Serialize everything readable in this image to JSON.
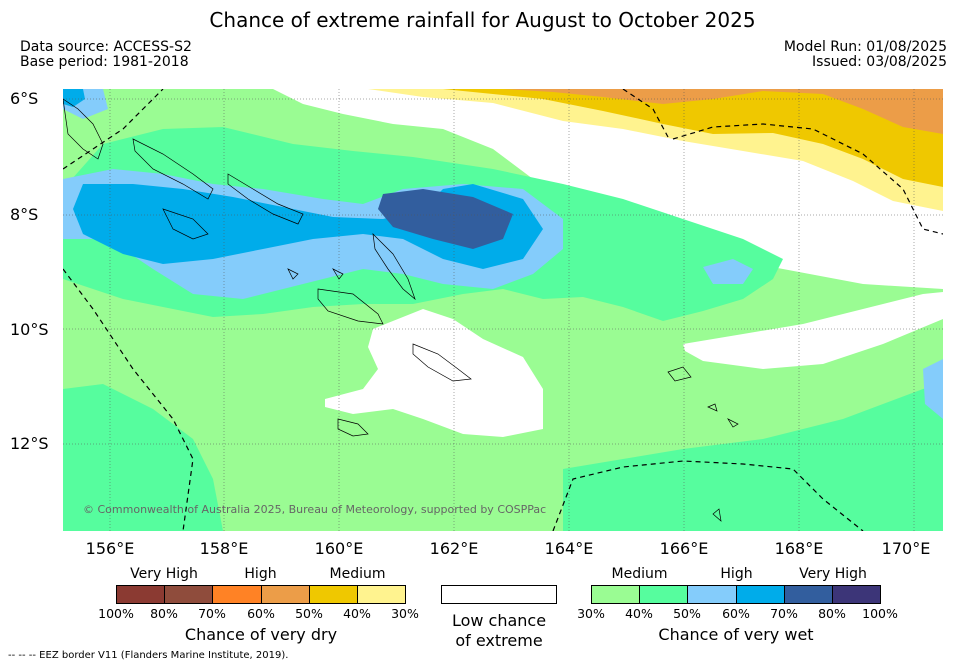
{
  "title": "Chance of extreme rainfall for August to October 2025",
  "data_source": "Data source: ACCESS-S2",
  "base_period": "Base period: 1981-2018",
  "model_run": "Model Run: 01/08/2025",
  "issued": "Issued: 03/08/2025",
  "map": {
    "lat_labels": [
      "6°S",
      "8°S",
      "10°S",
      "12°S"
    ],
    "lon_labels": [
      "156°E",
      "158°E",
      "160°E",
      "162°E",
      "164°E",
      "166°E",
      "168°E",
      "170°E"
    ],
    "copyright": "© Commonwealth of Australia 2025, Bureau of Meteorology, supported by COSPPac"
  },
  "legend": {
    "dry": {
      "headers": [
        "Very High",
        "High",
        "Medium"
      ],
      "ticks": [
        "100%",
        "80%",
        "70%",
        "60%",
        "50%",
        "40%",
        "30%"
      ],
      "caption": "Chance of very dry",
      "colors": [
        "#8b3a32",
        "#8f4c3c",
        "#ff8225",
        "#ec9d48",
        "#efc800",
        "#fff38f"
      ]
    },
    "neutral": {
      "caption_line1": "Low chance",
      "caption_line2": "of extreme",
      "color": "#ffffff"
    },
    "wet": {
      "headers": [
        "Medium",
        "High",
        "Very High"
      ],
      "ticks": [
        "30%",
        "40%",
        "50%",
        "60%",
        "70%",
        "80%",
        "100%"
      ],
      "caption": "Chance of very wet",
      "colors": [
        "#9afc93",
        "#56fd9e",
        "#84ccfb",
        "#00acea",
        "#325e9e",
        "#3c3578"
      ]
    }
  },
  "footnote": "--  --  -- EEZ border V11 (Flanders Marine Institute, 2019)."
}
